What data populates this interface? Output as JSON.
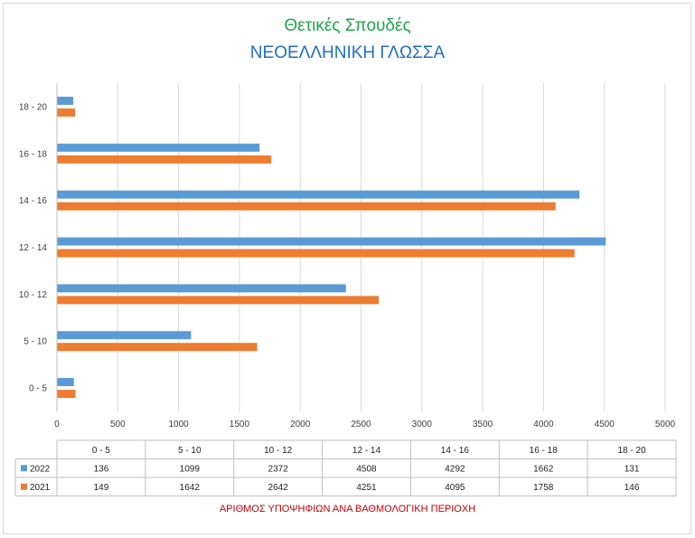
{
  "title": "Θετικές Σπουδές",
  "subtitle": "ΝΕΟΕΛΛΗΝΙΚΗ ΓΛΩΣΣΑ",
  "footer": "ΑΡΙΘΜΟΣ ΥΠΟΨΗΦΙΩΝ ΑΝΑ ΒΑΘΜΟΛΟΓΙΚΗ ΠΕΡΙΟΧΗ",
  "chart_data": {
    "type": "bar",
    "orientation": "horizontal",
    "categories": [
      "0 - 5",
      "5 - 10",
      "10 - 12",
      "12 - 14",
      "14 - 16",
      "16 - 18",
      "18 - 20"
    ],
    "series": [
      {
        "name": "2022",
        "color": "#5b9bd5",
        "values": [
          136,
          1099,
          2372,
          4508,
          4292,
          1662,
          131
        ]
      },
      {
        "name": "2021",
        "color": "#ed7d31",
        "values": [
          149,
          1642,
          2642,
          4251,
          4095,
          1758,
          146
        ]
      }
    ],
    "xlim": [
      0,
      5000
    ],
    "xticks": [
      0,
      500,
      1000,
      1500,
      2000,
      2500,
      3000,
      3500,
      4000,
      4500,
      5000
    ],
    "grid": true,
    "legend": "data-table"
  }
}
